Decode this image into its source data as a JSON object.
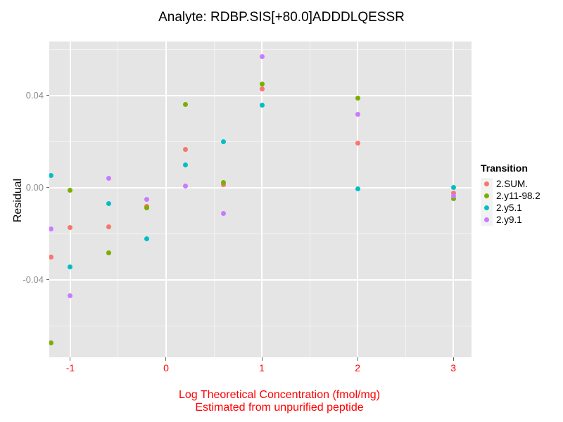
{
  "title": "Analyte: RDBP.SIS[+80.0]ADDDLQESSR",
  "y_axis": {
    "label": "Residual",
    "tick_labels": [
      "0.04",
      "0.00",
      "-0.04"
    ],
    "tick_values": [
      0.04,
      0.0,
      -0.04
    ],
    "tick_color": "#8C8C8C"
  },
  "x_axis": {
    "label_line1": "Log Theoretical Concentration (fmol/mg)",
    "label_line2": "Estimated from unpurified peptide",
    "tick_labels": [
      "-1",
      "0",
      "1",
      "2",
      "3"
    ],
    "tick_values": [
      -1,
      0,
      1,
      2,
      3
    ],
    "tick_color": "#FF0000"
  },
  "legend": {
    "title": "Transition"
  },
  "colors": {
    "panel_background": "#E5E5E5",
    "major_grid": "#FFFFFF",
    "axis_text_x": "#FF0000",
    "axis_text_y": "#8C8C8C",
    "series_red": "#F8766D",
    "series_green": "#7CAE00",
    "series_teal": "#00BFC4",
    "series_purple": "#C77CFF"
  },
  "chart_data": {
    "type": "scatter",
    "title": "Analyte: RDBP.SIS[+80.0]ADDDLQESSR",
    "xlabel": "Log Theoretical Concentration (fmol/mg)\nEstimated from unpurified peptide",
    "ylabel": "Residual",
    "xlim": [
      -1.22,
      3.19
    ],
    "ylim": [
      -0.0736,
      0.0635
    ],
    "x_major_ticks": [
      -1,
      0,
      1,
      2,
      3
    ],
    "x_minor_ticks": [
      -0.5,
      0.5,
      1.5,
      2.5
    ],
    "y_major_ticks": [
      -0.04,
      0.0,
      0.04
    ],
    "y_minor_ticks": [
      -0.06,
      -0.02,
      0.02,
      0.06
    ],
    "grid": true,
    "legend_position": "right",
    "legend_title": "Transition",
    "series": [
      {
        "name": "2.SUM.",
        "color": "#F8766D",
        "points": [
          [
            -1.2,
            -0.0302
          ],
          [
            -1.0,
            -0.0174
          ],
          [
            -0.6,
            -0.0171
          ],
          [
            -0.2,
            -0.008
          ],
          [
            0.2,
            0.0165
          ],
          [
            0.6,
            0.0015
          ],
          [
            1.0,
            0.043
          ],
          [
            2.0,
            0.0195
          ],
          [
            3.0,
            -0.0024
          ]
        ]
      },
      {
        "name": "2.y11-98.2",
        "color": "#7CAE00",
        "points": [
          [
            -1.2,
            -0.0674
          ],
          [
            -1.0,
            -0.0012
          ],
          [
            -0.6,
            -0.0284
          ],
          [
            -0.2,
            -0.0086
          ],
          [
            0.2,
            0.0363
          ],
          [
            0.6,
            0.0024
          ],
          [
            1.0,
            0.0449
          ],
          [
            2.0,
            0.0388
          ],
          [
            3.0,
            -0.0046
          ]
        ]
      },
      {
        "name": "2.y5.1",
        "color": "#00BFC4",
        "points": [
          [
            -1.2,
            0.0052
          ],
          [
            -1.0,
            -0.0345
          ],
          [
            -0.6,
            -0.007
          ],
          [
            -0.2,
            -0.0223
          ],
          [
            0.2,
            0.0098
          ],
          [
            0.6,
            0.0201
          ],
          [
            1.0,
            0.036
          ],
          [
            2.0,
            -0.0006
          ],
          [
            3.0,
            0.0
          ]
        ]
      },
      {
        "name": "2.y9.1",
        "color": "#C77CFF",
        "points": [
          [
            -1.2,
            -0.018
          ],
          [
            -1.0,
            -0.047
          ],
          [
            -0.6,
            0.004
          ],
          [
            -0.2,
            -0.0052
          ],
          [
            0.2,
            0.0009
          ],
          [
            0.6,
            -0.0113
          ],
          [
            1.0,
            0.0568
          ],
          [
            2.0,
            0.032
          ],
          [
            3.0,
            -0.0034
          ]
        ]
      }
    ]
  }
}
